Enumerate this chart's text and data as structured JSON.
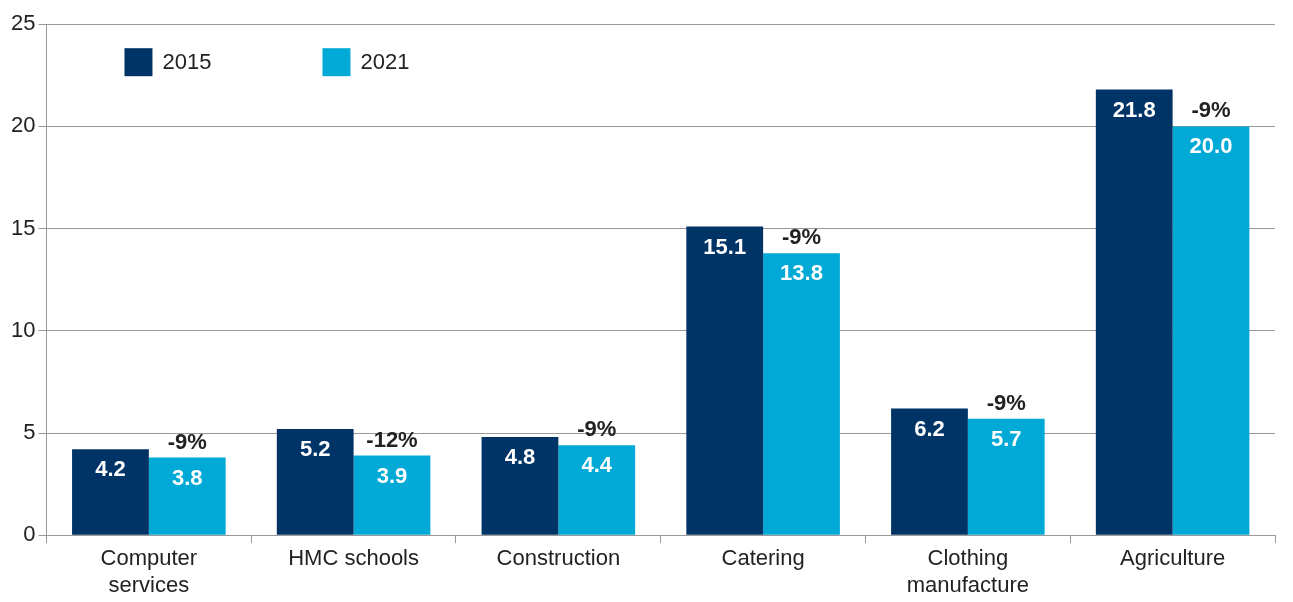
{
  "chart_data": {
    "type": "bar",
    "categories": [
      "Computer services",
      "HMC schools",
      "Construction",
      "Catering",
      "Clothing manufacture",
      "Agriculture"
    ],
    "series": [
      {
        "name": "2015",
        "color": "#003366",
        "values": [
          4.2,
          5.2,
          4.8,
          15.1,
          6.2,
          21.8
        ],
        "value_labels": [
          "4.2",
          "5.2",
          "4.8",
          "15.1",
          "6.2",
          "21.8"
        ]
      },
      {
        "name": "2021",
        "color": "#00a9d6",
        "values": [
          3.8,
          3.9,
          4.4,
          13.8,
          5.7,
          20.0
        ],
        "value_labels": [
          "3.8",
          "3.9",
          "4.4",
          "13.8",
          "5.7",
          "20.0"
        ]
      }
    ],
    "ylim": [
      0,
      25
    ],
    "yticks": [
      0,
      5,
      10,
      15,
      20,
      25
    ],
    "grid": "y",
    "legend": "top left",
    "annotations": [
      {
        "text": "-9%",
        "x": "Computer services",
        "y": 3.8
      },
      {
        "text": "-12%",
        "x": "HMC schools",
        "y": 3.9
      },
      {
        "text": "-9%",
        "x": "Construction",
        "y": 4.4
      },
      {
        "text": "-9%",
        "x": "Catering",
        "y": 13.8
      },
      {
        "text": "-9%",
        "x": "Clothing manufacture",
        "y": 5.7
      },
      {
        "text": "-9%",
        "x": "Agriculture",
        "y": 20.0
      }
    ]
  }
}
